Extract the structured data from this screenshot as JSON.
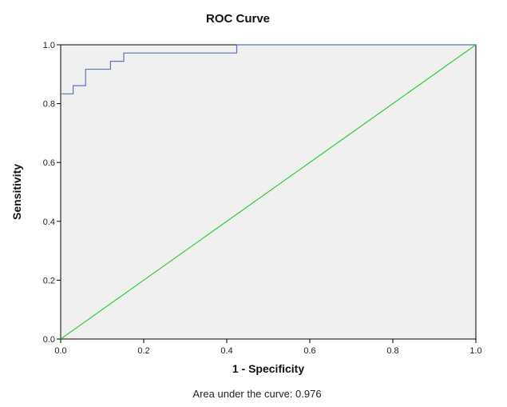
{
  "chart_data": {
    "type": "line",
    "title": "ROC Curve",
    "xlabel": "1 - Specificity",
    "ylabel": "Sensitivity",
    "xlim": [
      0,
      1
    ],
    "ylim": [
      0,
      1
    ],
    "x_ticks": [
      "0.0",
      "0.2",
      "0.4",
      "0.6",
      "0.8",
      "1.0"
    ],
    "y_ticks": [
      "0.0",
      "0.2",
      "0.4",
      "0.6",
      "0.8",
      "1.0"
    ],
    "grid": false,
    "plot_background": "#f0f0f0",
    "series": [
      {
        "color": "#5b72b8",
        "step": true,
        "points": [
          [
            0.0,
            0.833
          ],
          [
            0.03,
            0.833
          ],
          [
            0.03,
            0.861
          ],
          [
            0.06,
            0.861
          ],
          [
            0.06,
            0.917
          ],
          [
            0.12,
            0.917
          ],
          [
            0.12,
            0.944
          ],
          [
            0.152,
            0.944
          ],
          [
            0.152,
            0.972
          ],
          [
            0.424,
            0.972
          ],
          [
            0.424,
            1.0
          ],
          [
            1.0,
            1.0
          ]
        ]
      },
      {
        "color": "#33cc33",
        "step": false,
        "points": [
          [
            0.0,
            0.0
          ],
          [
            1.0,
            1.0
          ]
        ]
      }
    ],
    "annotation": "Area under the curve: 0.976"
  }
}
